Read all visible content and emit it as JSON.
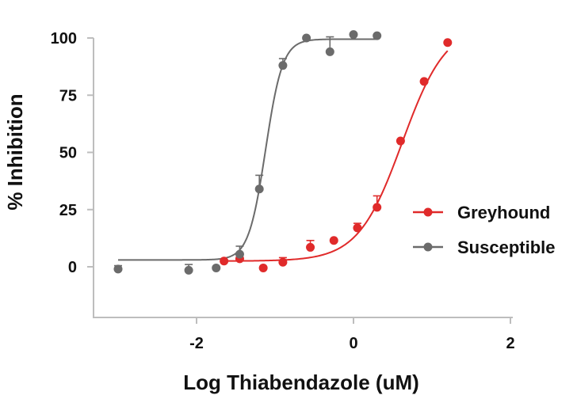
{
  "chart_data": {
    "type": "scatter",
    "title": "",
    "xlabel": "Log Thiabendazole (uM)",
    "ylabel": "% Inhibition",
    "xlim": [
      -3.3,
      2
    ],
    "ylim": [
      -20,
      100
    ],
    "xticks": [
      -2,
      0,
      2
    ],
    "xtick_labels": [
      "-2",
      "0",
      "2"
    ],
    "yticks": [
      0,
      25,
      50,
      75,
      100
    ],
    "ytick_labels": [
      "0",
      "25",
      "50",
      "75",
      "100"
    ],
    "grid": false,
    "legend_position": "right",
    "series": [
      {
        "name": "Greyhound",
        "color": "#e02a2a",
        "points": [
          {
            "x": -1.65,
            "y": 2.5,
            "err": 0
          },
          {
            "x": -1.45,
            "y": 3.5,
            "err": 0
          },
          {
            "x": -1.15,
            "y": -0.5,
            "err": 0
          },
          {
            "x": -0.9,
            "y": 2.0,
            "err": 2
          },
          {
            "x": -0.55,
            "y": 8.5,
            "err": 3
          },
          {
            "x": -0.25,
            "y": 11.5,
            "err": 0
          },
          {
            "x": 0.05,
            "y": 17.0,
            "err": 2
          },
          {
            "x": 0.3,
            "y": 26.0,
            "err": 5
          },
          {
            "x": 0.6,
            "y": 55.0,
            "err": 0
          },
          {
            "x": 0.9,
            "y": 81.0,
            "err": 0
          },
          {
            "x": 1.2,
            "y": 98.0,
            "err": 0
          }
        ],
        "fit": {
          "bottom": 2.5,
          "top": 106,
          "log_ec50": 0.62,
          "hill": 1.55,
          "x_range": [
            -1.65,
            1.2
          ]
        }
      },
      {
        "name": "Susceptible",
        "color": "#6b6b6b",
        "points": [
          {
            "x": -3.0,
            "y": -1.0,
            "err": 1.5
          },
          {
            "x": -2.1,
            "y": -1.5,
            "err": 2.5
          },
          {
            "x": -1.75,
            "y": -0.5,
            "err": 0
          },
          {
            "x": -1.45,
            "y": 5.5,
            "err": 3.5
          },
          {
            "x": -1.2,
            "y": 34.0,
            "err": 6
          },
          {
            "x": -0.9,
            "y": 88.0,
            "err": 3
          },
          {
            "x": -0.6,
            "y": 100.0,
            "err": 0
          },
          {
            "x": -0.3,
            "y": 94.0,
            "err": 6.5
          },
          {
            "x": 0.0,
            "y": 101.5,
            "err": 0
          },
          {
            "x": 0.3,
            "y": 101.0,
            "err": 0
          }
        ],
        "fit": {
          "bottom": 3,
          "top": 99.5,
          "log_ec50": -1.12,
          "hill": 4.0,
          "x_range": [
            -3.0,
            0.3
          ]
        }
      }
    ]
  }
}
